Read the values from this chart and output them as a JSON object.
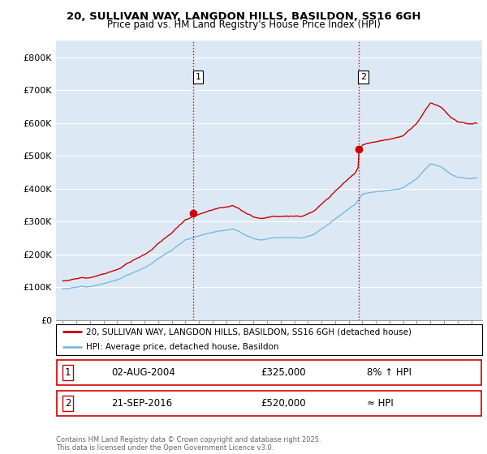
{
  "title_line1": "20, SULLIVAN WAY, LANGDON HILLS, BASILDON, SS16 6GH",
  "title_line2": "Price paid vs. HM Land Registry's House Price Index (HPI)",
  "background_color": "#ffffff",
  "plot_bg_color": "#dce9f5",
  "grid_color": "#ffffff",
  "hpi_color": "#7ab8e0",
  "price_color": "#cc0000",
  "vline_color": "#cc0000",
  "purchase1_year": 2004.58,
  "purchase1_price": 325000,
  "purchase1_label": "1",
  "purchase2_year": 2016.72,
  "purchase2_price": 520000,
  "purchase2_label": "2",
  "legend_line1": "20, SULLIVAN WAY, LANGDON HILLS, BASILDON, SS16 6GH (detached house)",
  "legend_line2": "HPI: Average price, detached house, Basildon",
  "footnote": "Contains HM Land Registry data © Crown copyright and database right 2025.\nThis data is licensed under the Open Government Licence v3.0.",
  "table_rows": [
    [
      "1",
      "02-AUG-2004",
      "£325,000",
      "8% ↑ HPI"
    ],
    [
      "2",
      "21-SEP-2016",
      "£520,000",
      "≈ HPI"
    ]
  ],
  "ylim_min": 0,
  "ylim_max": 850000,
  "yticks": [
    0,
    100000,
    200000,
    300000,
    400000,
    500000,
    600000,
    700000,
    800000
  ],
  "ytick_labels": [
    "£0",
    "£100K",
    "£200K",
    "£300K",
    "£400K",
    "£500K",
    "£600K",
    "£700K",
    "£800K"
  ],
  "xlim_min": 1994.5,
  "xlim_max": 2025.8,
  "xticks": [
    1995,
    1996,
    1997,
    1998,
    1999,
    2000,
    2001,
    2002,
    2003,
    2004,
    2005,
    2006,
    2007,
    2008,
    2009,
    2010,
    2011,
    2012,
    2013,
    2014,
    2015,
    2016,
    2017,
    2018,
    2019,
    2020,
    2021,
    2022,
    2023,
    2024,
    2025
  ]
}
